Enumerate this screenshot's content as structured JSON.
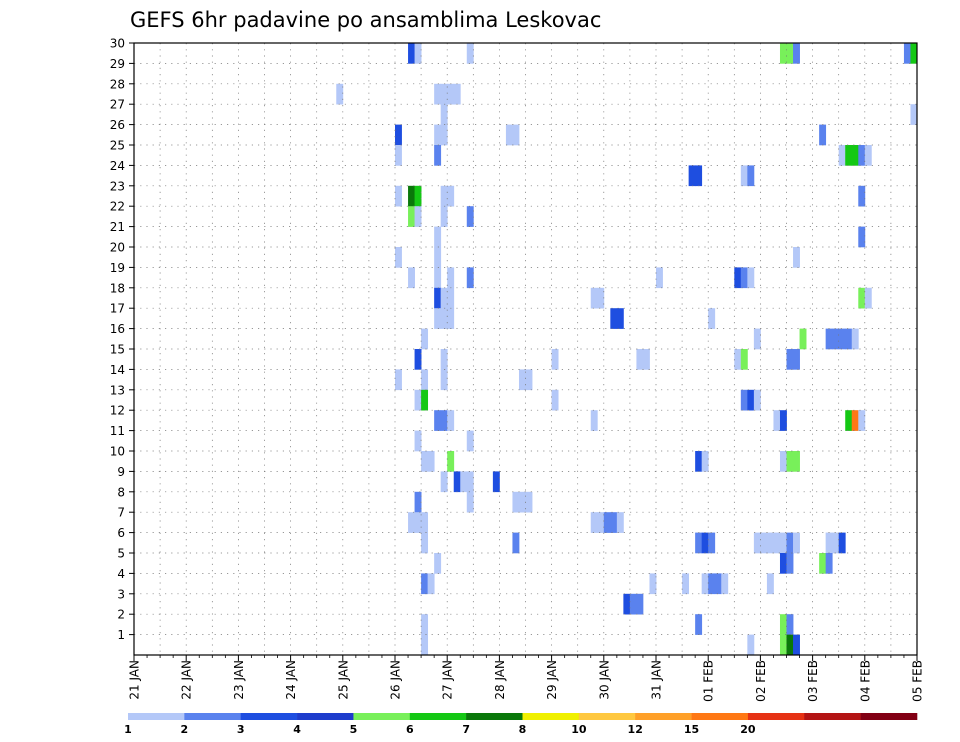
{
  "chart_data": {
    "type": "heatmap",
    "title": "GEFS 6hr padavine po ansamblima Leskovac",
    "x_tick_labels": [
      "21 JAN",
      "22 JAN",
      "23 JAN",
      "24 JAN",
      "25 JAN",
      "26 JAN",
      "27 JAN",
      "28 JAN",
      "29 JAN",
      "30 JAN",
      "31 JAN",
      "01 FEB",
      "02 FEB",
      "03 FEB",
      "04 FEB",
      "05 FEB"
    ],
    "y_tick_labels": [
      "1",
      "2",
      "3",
      "4",
      "5",
      "6",
      "7",
      "8",
      "9",
      "10",
      "11",
      "12",
      "13",
      "14",
      "15",
      "16",
      "17",
      "18",
      "19",
      "20",
      "21",
      "22",
      "23",
      "24",
      "25",
      "26",
      "27",
      "28",
      "29",
      "30"
    ],
    "xlim": [
      "21 JAN",
      "05 FEB"
    ],
    "ylim": [
      0,
      30
    ],
    "grid": "dotted",
    "legend_placement": "bottom",
    "legend": {
      "labels": [
        "1",
        "2",
        "3",
        "4",
        "5",
        "6",
        "7",
        "8",
        "10",
        "12",
        "15",
        "20"
      ],
      "colors": [
        "#b4c8f8",
        "#5a82ee",
        "#1e4ee0",
        "#1e3ccc",
        "#78f05a",
        "#14c814",
        "#0a780a",
        "#f0f000",
        "#ffc840",
        "#ffa028",
        "#ff7814",
        "#e63214",
        "#b41414",
        "#820014"
      ]
    },
    "cell_columns": [
      [
        "a",
        "a",
        "a",
        "a",
        "a",
        "a",
        "a",
        "a"
      ],
      [
        "a",
        "a",
        "a",
        "a",
        "a",
        "a",
        "a",
        "a"
      ],
      [
        "a",
        "a",
        "a",
        "a",
        "a",
        "a",
        "a",
        "a"
      ],
      [
        "a",
        "a",
        "a",
        "a",
        "a",
        "a",
        "a",
        "a"
      ]
    ],
    "cells": [
      {
        "member": 30,
        "step": 42,
        "v": 3
      },
      {
        "member": 30,
        "step": 43,
        "v": 1
      },
      {
        "member": 30,
        "step": 51,
        "v": 1
      },
      {
        "member": 30,
        "step": 99,
        "v": 5
      },
      {
        "member": 30,
        "step": 100,
        "v": 5
      },
      {
        "member": 30,
        "step": 101,
        "v": 2
      },
      {
        "member": 30,
        "step": 118,
        "v": 2
      },
      {
        "member": 30,
        "step": 119,
        "v": 6
      },
      {
        "member": 28,
        "step": 31,
        "v": 1
      },
      {
        "member": 28,
        "step": 46,
        "v": 1
      },
      {
        "member": 28,
        "step": 47,
        "v": 1
      },
      {
        "member": 28,
        "step": 48,
        "v": 1
      },
      {
        "member": 28,
        "step": 49,
        "v": 1
      },
      {
        "member": 27,
        "step": 47,
        "v": 1
      },
      {
        "member": 27,
        "step": 119,
        "v": 1
      },
      {
        "member": 26,
        "step": 40,
        "v": 3
      },
      {
        "member": 26,
        "step": 46,
        "v": 1
      },
      {
        "member": 26,
        "step": 47,
        "v": 1
      },
      {
        "member": 26,
        "step": 57,
        "v": 1
      },
      {
        "member": 26,
        "step": 58,
        "v": 1
      },
      {
        "member": 26,
        "step": 105,
        "v": 2
      },
      {
        "member": 25,
        "step": 40,
        "v": 1
      },
      {
        "member": 25,
        "step": 46,
        "v": 2
      },
      {
        "member": 25,
        "step": 108,
        "v": 1
      },
      {
        "member": 25,
        "step": 109,
        "v": 6
      },
      {
        "member": 25,
        "step": 110,
        "v": 6
      },
      {
        "member": 25,
        "step": 111,
        "v": 2
      },
      {
        "member": 25,
        "step": 112,
        "v": 1
      },
      {
        "member": 24,
        "step": 85,
        "v": 3
      },
      {
        "member": 24,
        "step": 86,
        "v": 3
      },
      {
        "member": 24,
        "step": 93,
        "v": 1
      },
      {
        "member": 24,
        "step": 94,
        "v": 2
      },
      {
        "member": 23,
        "step": 40,
        "v": 1
      },
      {
        "member": 23,
        "step": 42,
        "v": 7
      },
      {
        "member": 23,
        "step": 43,
        "v": 6
      },
      {
        "member": 23,
        "step": 47,
        "v": 1
      },
      {
        "member": 23,
        "step": 48,
        "v": 1
      },
      {
        "member": 23,
        "step": 111,
        "v": 2
      },
      {
        "member": 22,
        "step": 42,
        "v": 5
      },
      {
        "member": 22,
        "step": 43,
        "v": 1
      },
      {
        "member": 22,
        "step": 47,
        "v": 1
      },
      {
        "member": 22,
        "step": 51,
        "v": 2
      },
      {
        "member": 21,
        "step": 46,
        "v": 1
      },
      {
        "member": 21,
        "step": 111,
        "v": 2
      },
      {
        "member": 20,
        "step": 40,
        "v": 1
      },
      {
        "member": 20,
        "step": 46,
        "v": 1
      },
      {
        "member": 20,
        "step": 101,
        "v": 1
      },
      {
        "member": 19,
        "step": 42,
        "v": 1
      },
      {
        "member": 19,
        "step": 46,
        "v": 1
      },
      {
        "member": 19,
        "step": 48,
        "v": 1
      },
      {
        "member": 19,
        "step": 51,
        "v": 2
      },
      {
        "member": 19,
        "step": 80,
        "v": 1
      },
      {
        "member": 19,
        "step": 92,
        "v": 3
      },
      {
        "member": 19,
        "step": 93,
        "v": 2
      },
      {
        "member": 19,
        "step": 94,
        "v": 1
      },
      {
        "member": 18,
        "step": 46,
        "v": 3
      },
      {
        "member": 18,
        "step": 47,
        "v": 1
      },
      {
        "member": 18,
        "step": 48,
        "v": 1
      },
      {
        "member": 18,
        "step": 70,
        "v": 1
      },
      {
        "member": 18,
        "step": 71,
        "v": 1
      },
      {
        "member": 18,
        "step": 111,
        "v": 5
      },
      {
        "member": 18,
        "step": 112,
        "v": 1
      },
      {
        "member": 17,
        "step": 46,
        "v": 1
      },
      {
        "member": 17,
        "step": 47,
        "v": 1
      },
      {
        "member": 17,
        "step": 48,
        "v": 1
      },
      {
        "member": 17,
        "step": 73,
        "v": 3
      },
      {
        "member": 17,
        "step": 74,
        "v": 3
      },
      {
        "member": 17,
        "step": 88,
        "v": 1
      },
      {
        "member": 16,
        "step": 44,
        "v": 1
      },
      {
        "member": 16,
        "step": 95,
        "v": 1
      },
      {
        "member": 16,
        "step": 102,
        "v": 5
      },
      {
        "member": 16,
        "step": 106,
        "v": 2
      },
      {
        "member": 16,
        "step": 107,
        "v": 2
      },
      {
        "member": 16,
        "step": 108,
        "v": 2
      },
      {
        "member": 16,
        "step": 109,
        "v": 2
      },
      {
        "member": 16,
        "step": 110,
        "v": 1
      },
      {
        "member": 15,
        "step": 43,
        "v": 3
      },
      {
        "member": 15,
        "step": 47,
        "v": 1
      },
      {
        "member": 15,
        "step": 64,
        "v": 1
      },
      {
        "member": 15,
        "step": 77,
        "v": 1
      },
      {
        "member": 15,
        "step": 78,
        "v": 1
      },
      {
        "member": 15,
        "step": 92,
        "v": 1
      },
      {
        "member": 15,
        "step": 93,
        "v": 5
      },
      {
        "member": 15,
        "step": 100,
        "v": 2
      },
      {
        "member": 15,
        "step": 101,
        "v": 2
      },
      {
        "member": 14,
        "step": 40,
        "v": 1
      },
      {
        "member": 14,
        "step": 44,
        "v": 1
      },
      {
        "member": 14,
        "step": 47,
        "v": 1
      },
      {
        "member": 14,
        "step": 59,
        "v": 1
      },
      {
        "member": 14,
        "step": 60,
        "v": 1
      },
      {
        "member": 13,
        "step": 43,
        "v": 1
      },
      {
        "member": 13,
        "step": 44,
        "v": 6
      },
      {
        "member": 13,
        "step": 64,
        "v": 1
      },
      {
        "member": 13,
        "step": 93,
        "v": 2
      },
      {
        "member": 13,
        "step": 94,
        "v": 3
      },
      {
        "member": 13,
        "step": 95,
        "v": 1
      },
      {
        "member": 12,
        "step": 46,
        "v": 2
      },
      {
        "member": 12,
        "step": 47,
        "v": 2
      },
      {
        "member": 12,
        "step": 48,
        "v": 1
      },
      {
        "member": 12,
        "step": 70,
        "v": 1
      },
      {
        "member": 12,
        "step": 98,
        "v": 1
      },
      {
        "member": 12,
        "step": 99,
        "v": 3
      },
      {
        "member": 12,
        "step": 109,
        "v": 6
      },
      {
        "member": 12,
        "step": 110,
        "v": 11
      },
      {
        "member": 12,
        "step": 111,
        "v": 1
      },
      {
        "member": 11,
        "step": 43,
        "v": 1
      },
      {
        "member": 11,
        "step": 51,
        "v": 1
      },
      {
        "member": 10,
        "step": 44,
        "v": 1
      },
      {
        "member": 10,
        "step": 45,
        "v": 1
      },
      {
        "member": 10,
        "step": 48,
        "v": 5
      },
      {
        "member": 10,
        "step": 86,
        "v": 3
      },
      {
        "member": 10,
        "step": 87,
        "v": 1
      },
      {
        "member": 10,
        "step": 99,
        "v": 1
      },
      {
        "member": 10,
        "step": 100,
        "v": 5
      },
      {
        "member": 10,
        "step": 101,
        "v": 5
      },
      {
        "member": 9,
        "step": 47,
        "v": 1
      },
      {
        "member": 9,
        "step": 49,
        "v": 3
      },
      {
        "member": 9,
        "step": 50,
        "v": 1
      },
      {
        "member": 9,
        "step": 51,
        "v": 1
      },
      {
        "member": 9,
        "step": 55,
        "v": 3
      },
      {
        "member": 8,
        "step": 43,
        "v": 2
      },
      {
        "member": 8,
        "step": 51,
        "v": 1
      },
      {
        "member": 8,
        "step": 58,
        "v": 1
      },
      {
        "member": 8,
        "step": 59,
        "v": 1
      },
      {
        "member": 8,
        "step": 60,
        "v": 1
      },
      {
        "member": 7,
        "step": 42,
        "v": 1
      },
      {
        "member": 7,
        "step": 43,
        "v": 1
      },
      {
        "member": 7,
        "step": 44,
        "v": 1
      },
      {
        "member": 7,
        "step": 70,
        "v": 1
      },
      {
        "member": 7,
        "step": 71,
        "v": 1
      },
      {
        "member": 7,
        "step": 72,
        "v": 2
      },
      {
        "member": 7,
        "step": 73,
        "v": 2
      },
      {
        "member": 7,
        "step": 74,
        "v": 1
      },
      {
        "member": 6,
        "step": 44,
        "v": 1
      },
      {
        "member": 6,
        "step": 58,
        "v": 2
      },
      {
        "member": 6,
        "step": 86,
        "v": 2
      },
      {
        "member": 6,
        "step": 87,
        "v": 3
      },
      {
        "member": 6,
        "step": 88,
        "v": 2
      },
      {
        "member": 6,
        "step": 95,
        "v": 1
      },
      {
        "member": 6,
        "step": 96,
        "v": 1
      },
      {
        "member": 6,
        "step": 97,
        "v": 1
      },
      {
        "member": 6,
        "step": 98,
        "v": 1
      },
      {
        "member": 6,
        "step": 99,
        "v": 1
      },
      {
        "member": 6,
        "step": 100,
        "v": 2
      },
      {
        "member": 6,
        "step": 101,
        "v": 1
      },
      {
        "member": 6,
        "step": 106,
        "v": 1
      },
      {
        "member": 6,
        "step": 107,
        "v": 1
      },
      {
        "member": 6,
        "step": 108,
        "v": 3
      },
      {
        "member": 5,
        "step": 46,
        "v": 1
      },
      {
        "member": 5,
        "step": 99,
        "v": 3
      },
      {
        "member": 5,
        "step": 100,
        "v": 2
      },
      {
        "member": 5,
        "step": 105,
        "v": 5
      },
      {
        "member": 5,
        "step": 106,
        "v": 2
      },
      {
        "member": 4,
        "step": 44,
        "v": 2
      },
      {
        "member": 4,
        "step": 45,
        "v": 1
      },
      {
        "member": 4,
        "step": 79,
        "v": 1
      },
      {
        "member": 4,
        "step": 84,
        "v": 1
      },
      {
        "member": 4,
        "step": 87,
        "v": 1
      },
      {
        "member": 4,
        "step": 88,
        "v": 2
      },
      {
        "member": 4,
        "step": 89,
        "v": 2
      },
      {
        "member": 4,
        "step": 90,
        "v": 1
      },
      {
        "member": 4,
        "step": 97,
        "v": 1
      },
      {
        "member": 3,
        "step": 75,
        "v": 3
      },
      {
        "member": 3,
        "step": 76,
        "v": 2
      },
      {
        "member": 3,
        "step": 77,
        "v": 2
      },
      {
        "member": 2,
        "step": 44,
        "v": 1
      },
      {
        "member": 2,
        "step": 86,
        "v": 2
      },
      {
        "member": 2,
        "step": 99,
        "v": 5
      },
      {
        "member": 2,
        "step": 100,
        "v": 2
      },
      {
        "member": 1,
        "step": 44,
        "v": 1
      },
      {
        "member": 1,
        "step": 94,
        "v": 1
      },
      {
        "member": 1,
        "step": 99,
        "v": 5
      },
      {
        "member": 1,
        "step": 100,
        "v": 7
      },
      {
        "member": 1,
        "step": 101,
        "v": 3
      }
    ]
  }
}
